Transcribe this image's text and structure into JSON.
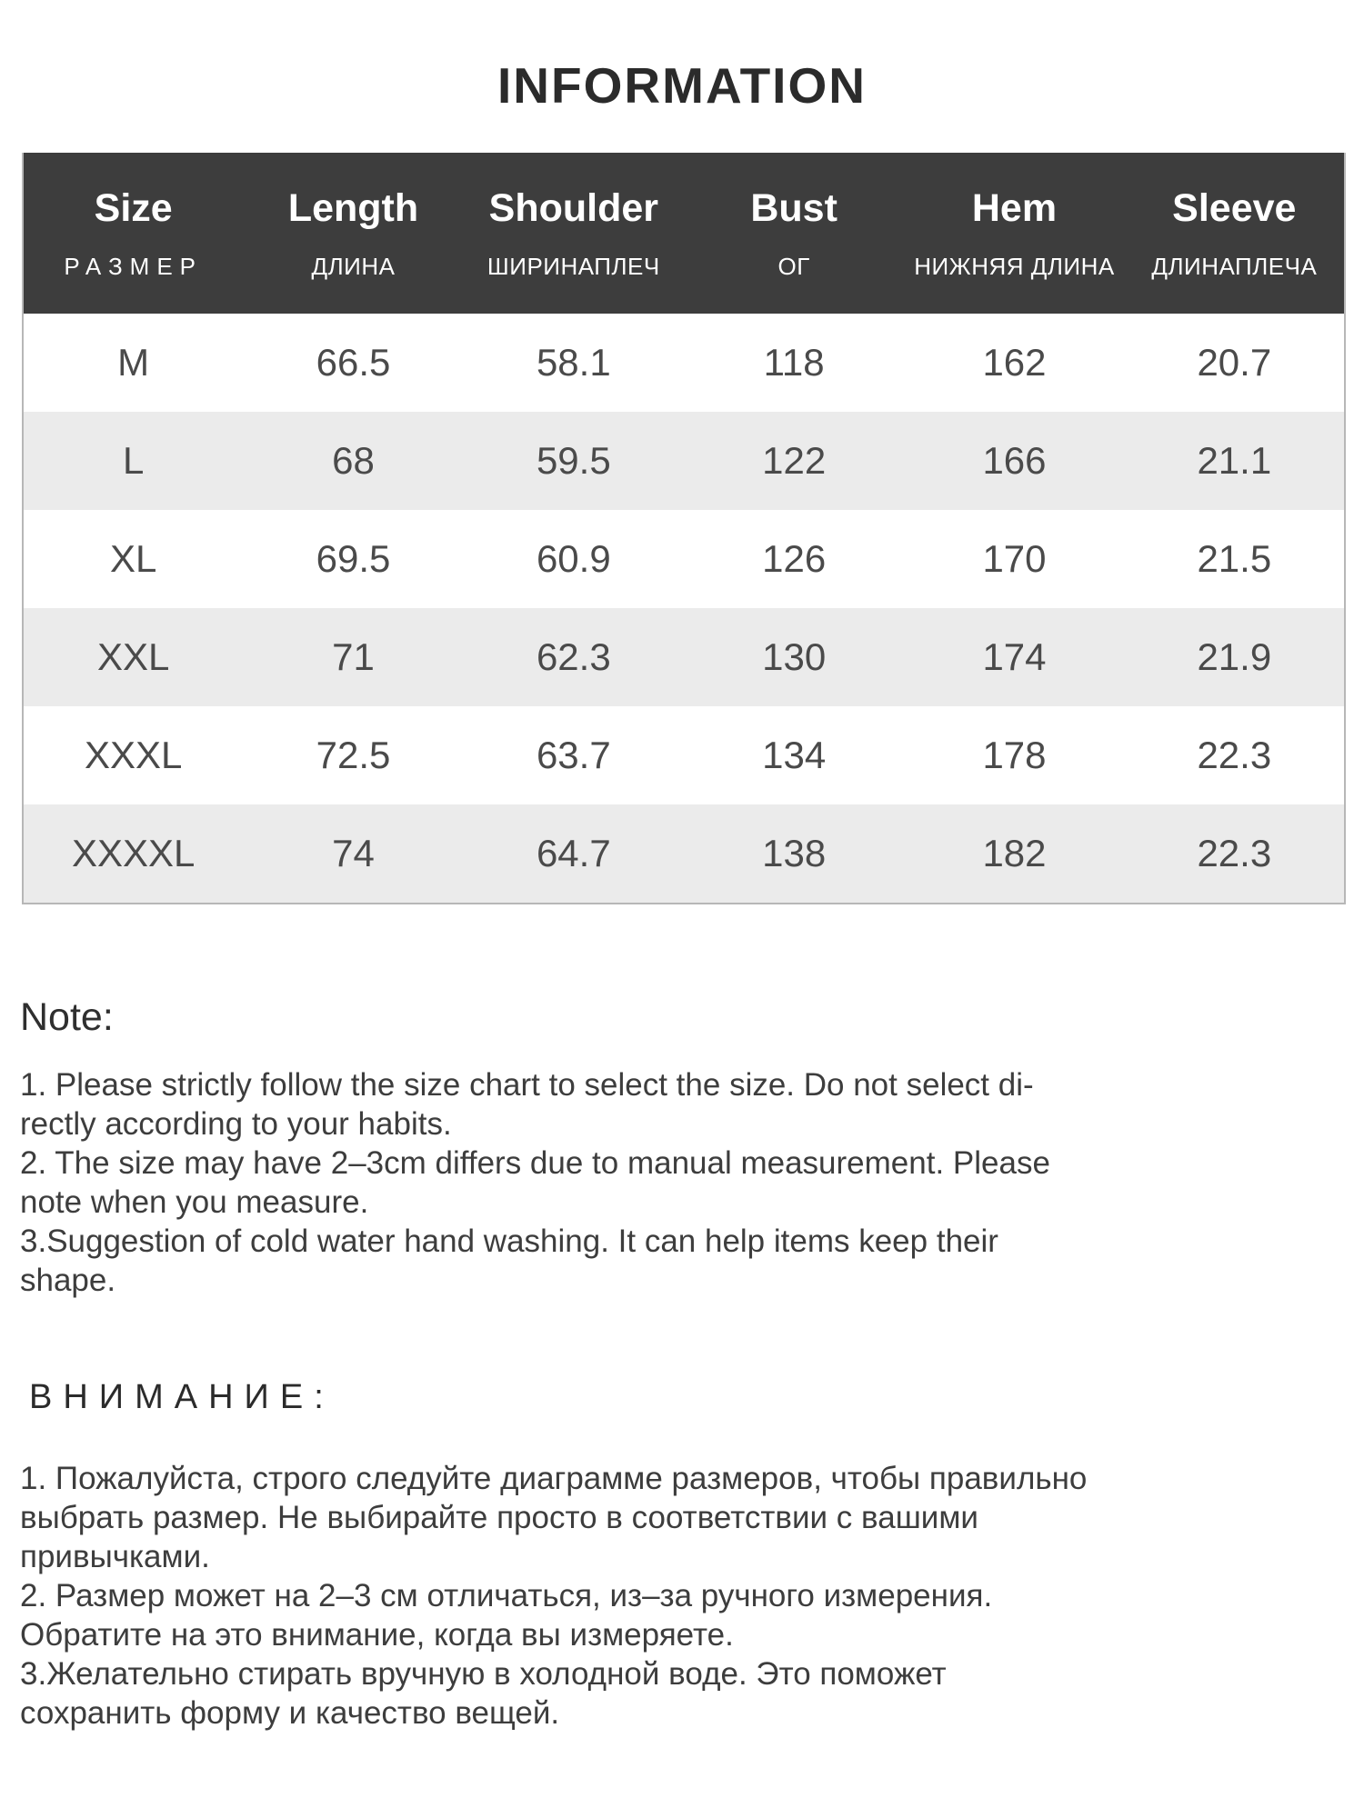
{
  "title": "INFORMATION",
  "table": {
    "columns": [
      {
        "en": "Size",
        "ru": "РАЗМЕР"
      },
      {
        "en": "Length",
        "ru": "ДЛИНА"
      },
      {
        "en": "Shoulder",
        "ru": "ШИРИНАПЛЕЧ"
      },
      {
        "en": "Bust",
        "ru": "ОГ"
      },
      {
        "en": "Hem",
        "ru": "НИЖНЯЯ ДЛИНА"
      },
      {
        "en": "Sleeve",
        "ru": "ДЛИНАПЛЕЧА"
      }
    ],
    "rows": [
      {
        "size": "M",
        "length": "66.5",
        "shoulder": "58.1",
        "bust": "118",
        "hem": "162",
        "sleeve": "20.7"
      },
      {
        "size": "L",
        "length": "68",
        "shoulder": "59.5",
        "bust": "122",
        "hem": "166",
        "sleeve": "21.1"
      },
      {
        "size": "XL",
        "length": "69.5",
        "shoulder": "60.9",
        "bust": "126",
        "hem": "170",
        "sleeve": "21.5"
      },
      {
        "size": "XXL",
        "length": "71",
        "shoulder": "62.3",
        "bust": "130",
        "hem": "174",
        "sleeve": "21.9"
      },
      {
        "size": "XXXL",
        "length": "72.5",
        "shoulder": "63.7",
        "bust": "134",
        "hem": "178",
        "sleeve": "22.3"
      },
      {
        "size": "XXXXL",
        "length": "74",
        "shoulder": "64.7",
        "bust": "138",
        "hem": "182",
        "sleeve": "22.3"
      }
    ]
  },
  "note": {
    "heading": "Note:",
    "body": "1. Please strictly follow the size chart  to select the size. Do not select di-\nrectly according to your habits.\n2. The size may have 2–3cm differs due to manual measurement. Please\nnote when you measure.\n3.Suggestion of cold water hand washing. It can help items keep their\nshape."
  },
  "attention": {
    "heading": "ВНИМАНИЕ:",
    "body": "1. Пожалуйста, строго следуйте диаграмме размеров, чтобы правильно\nвыбрать размер. Не выбирайте просто в соответствии с вашими\nпривычками.\n2. Размер может на 2–3 см отличаться, из–за ручного измерения.\nОбратите на это внимание, когда вы измеряете.\n3.Желательно стирать вручную в холодной воде. Это поможет\nсохранить форму и качество вещей."
  },
  "colors": {
    "header_bg": "#3d3d3d",
    "header_text": "#ffffff",
    "row_alt_bg": "#ebebeb",
    "table_border": "#b7b7b7",
    "body_text": "#3d3d3d"
  }
}
